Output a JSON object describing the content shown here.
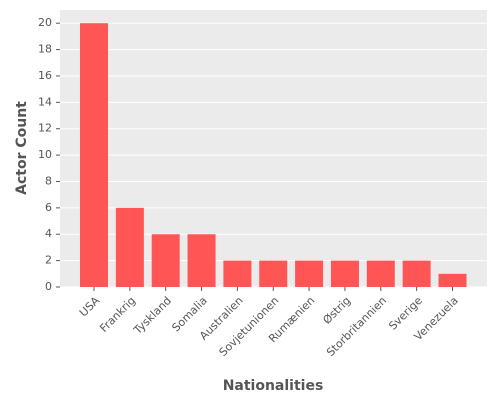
{
  "chart_data": {
    "type": "bar",
    "x_label": "Nationalities",
    "y_label": "Actor Count",
    "categories": [
      "USA",
      "Frankrig",
      "Tyskland",
      "Somalia",
      "Australien",
      "Sovjetunionen",
      "Rumænien",
      "Østrig",
      "Storbritannien",
      "Sverige",
      "Venezuela"
    ],
    "values": [
      20,
      6,
      4,
      4,
      2,
      2,
      2,
      2,
      2,
      2,
      1
    ],
    "color": "#ff5555",
    "ylim": [
      0,
      21
    ],
    "yticks": [
      0,
      2,
      4,
      6,
      8,
      10,
      12,
      14,
      16,
      18,
      20
    ],
    "grid": true
  }
}
